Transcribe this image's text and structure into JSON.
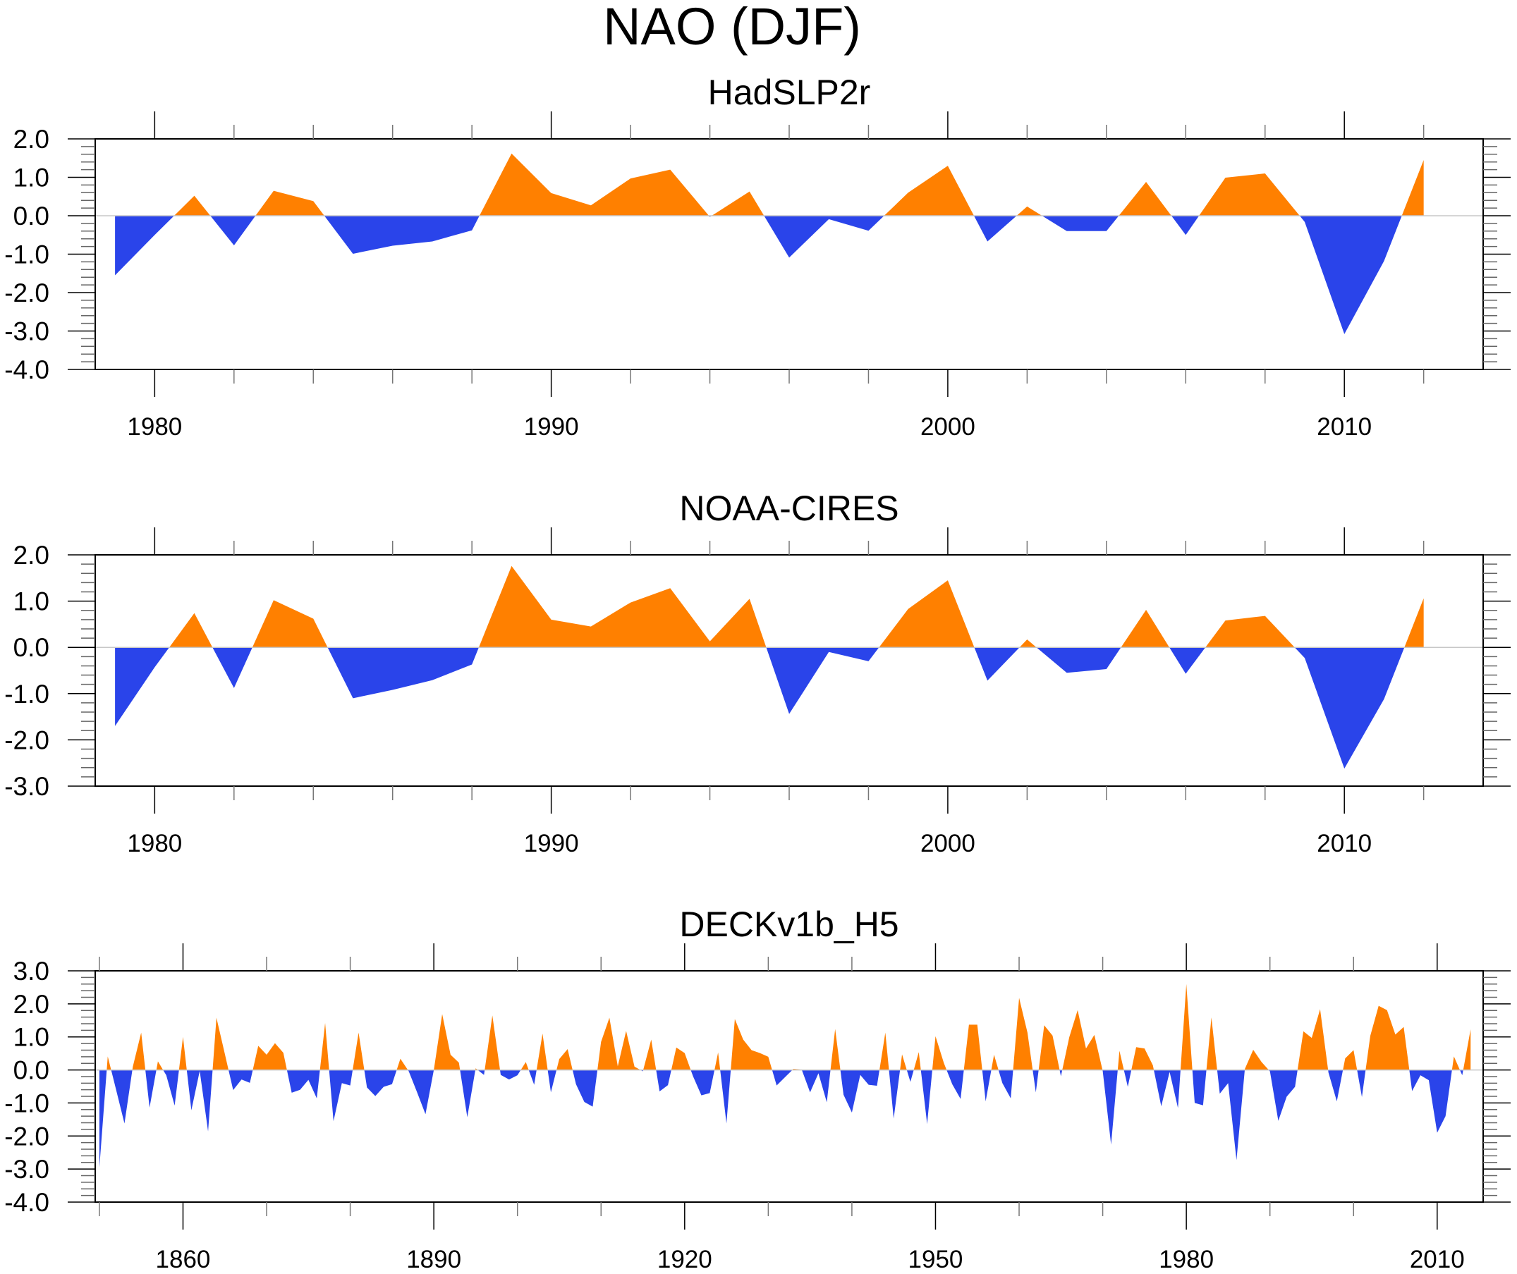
{
  "figure": {
    "title": "NAO (DJF)",
    "colors": {
      "positive": "#FF8000",
      "negative": "#2A44EA",
      "zero_line": "#C8C8C8",
      "frame": "#000000"
    }
  },
  "chart_data": [
    {
      "type": "area",
      "title": "HadSLP2r",
      "xlabel": "",
      "ylabel": "",
      "xlim": [
        1978.5,
        2013.5
      ],
      "ylim": [
        -4.0,
        2.0
      ],
      "x_major_ticks": [
        1980,
        1990,
        2000,
        2010
      ],
      "x_tick_labels": [
        "1980",
        "1990",
        "2000",
        "2010"
      ],
      "x_minor_step": 2,
      "y_ticks": [
        2.0,
        1.0,
        0.0,
        -1.0,
        -2.0,
        -3.0,
        -4.0
      ],
      "y_tick_labels": [
        "2.0",
        "1.0",
        "0.0",
        "-1.0",
        "-2.0",
        "-3.0",
        "-4.0"
      ],
      "y_minor_step": 0.2,
      "grid": false,
      "x_start": 1979,
      "values": [
        -1.55,
        -0.5,
        0.52,
        -0.77,
        0.65,
        0.38,
        -0.99,
        -0.78,
        -0.67,
        -0.38,
        1.62,
        0.59,
        0.27,
        0.97,
        1.2,
        -0.03,
        0.63,
        -1.09,
        -0.09,
        -0.39,
        0.6,
        1.3,
        -0.67,
        0.24,
        -0.4,
        -0.4,
        0.88,
        -0.5,
        0.99,
        1.1,
        -0.16,
        -3.08,
        -1.18,
        1.45
      ]
    },
    {
      "type": "area",
      "title": "NOAA-CIRES",
      "xlabel": "",
      "ylabel": "",
      "xlim": [
        1978.5,
        2013.5
      ],
      "ylim": [
        -3.0,
        2.0
      ],
      "x_major_ticks": [
        1980,
        1990,
        2000,
        2010
      ],
      "x_tick_labels": [
        "1980",
        "1990",
        "2000",
        "2010"
      ],
      "x_minor_step": 2,
      "y_ticks": [
        2.0,
        1.0,
        0.0,
        -1.0,
        -2.0,
        -3.0
      ],
      "y_tick_labels": [
        "2.0",
        "1.0",
        "0.0",
        "-1.0",
        "-2.0",
        "-3.0"
      ],
      "y_minor_step": 0.2,
      "grid": false,
      "x_start": 1979,
      "values": [
        -1.7,
        -0.43,
        0.74,
        -0.88,
        1.02,
        0.62,
        -1.1,
        -0.92,
        -0.71,
        -0.37,
        1.76,
        0.6,
        0.45,
        0.97,
        1.28,
        0.13,
        1.05,
        -1.44,
        -0.1,
        -0.3,
        0.83,
        1.45,
        -0.72,
        0.17,
        -0.55,
        -0.47,
        0.81,
        -0.57,
        0.58,
        0.68,
        -0.23,
        -2.62,
        -1.12,
        1.06
      ]
    },
    {
      "type": "area",
      "title": "DECKv1b_H5",
      "xlabel": "",
      "ylabel": "",
      "xlim": [
        1849.5,
        2015.5
      ],
      "ylim": [
        -4.0,
        3.0
      ],
      "x_major_ticks": [
        1860,
        1890,
        1920,
        1950,
        1980,
        2010
      ],
      "x_tick_labels": [
        "1860",
        "1890",
        "1920",
        "1950",
        "1980",
        "2010"
      ],
      "x_minor_step": 10,
      "y_ticks": [
        3.0,
        2.0,
        1.0,
        0.0,
        -1.0,
        -2.0,
        -3.0,
        -4.0
      ],
      "y_tick_labels": [
        "3.0",
        "2.0",
        "1.0",
        "0.0",
        "-1.0",
        "-2.0",
        "-3.0",
        "-4.0"
      ],
      "y_minor_step": 0.2,
      "grid": false,
      "x_start": 1850,
      "values": [
        -2.95,
        0.41,
        -0.6,
        -1.62,
        0.1,
        1.13,
        -1.14,
        0.26,
        -0.16,
        -1.08,
        1.0,
        -1.22,
        -0.03,
        -1.86,
        1.58,
        0.49,
        -0.61,
        -0.29,
        -0.39,
        0.73,
        0.46,
        0.81,
        0.52,
        -0.69,
        -0.6,
        -0.3,
        -0.86,
        1.42,
        -1.55,
        -0.4,
        -0.47,
        1.13,
        -0.53,
        -0.79,
        -0.51,
        -0.43,
        0.34,
        -0.04,
        -0.68,
        -1.34,
        0.0,
        1.69,
        0.46,
        0.22,
        -1.43,
        0.05,
        -0.15,
        1.65,
        -0.15,
        -0.29,
        -0.16,
        0.24,
        -0.45,
        1.1,
        -0.68,
        0.33,
        0.63,
        -0.43,
        -0.97,
        -1.11,
        0.85,
        1.58,
        0.11,
        1.18,
        0.1,
        -0.04,
        0.92,
        -0.65,
        -0.46,
        0.68,
        0.51,
        -0.19,
        -0.77,
        -0.7,
        0.53,
        -1.62,
        1.54,
        0.92,
        0.6,
        0.51,
        0.4,
        -0.47,
        -0.22,
        0.03,
        0.01,
        -0.68,
        -0.1,
        -0.98,
        1.24,
        -0.75,
        -1.29,
        -0.15,
        -0.45,
        -0.48,
        1.13,
        -1.47,
        0.47,
        -0.36,
        0.54,
        -1.64,
        1.02,
        0.21,
        -0.43,
        -0.88,
        1.37,
        1.37,
        -0.95,
        0.46,
        -0.4,
        -0.86,
        2.18,
        1.13,
        -0.68,
        1.35,
        1.04,
        -0.19,
        0.99,
        1.81,
        0.65,
        1.06,
        -0.03,
        -2.26,
        0.58,
        -0.51,
        0.69,
        0.65,
        0.14,
        -1.1,
        -0.06,
        -1.15,
        2.6,
        -1.0,
        -1.07,
        1.59,
        -0.72,
        -0.4,
        -2.73,
        0.03,
        0.61,
        0.24,
        -0.04,
        -1.54,
        -0.81,
        -0.51,
        1.17,
        0.97,
        1.84,
        -0.08,
        -0.95,
        0.35,
        0.6,
        -0.82,
        1.03,
        1.94,
        1.81,
        1.07,
        1.3,
        -0.64,
        -0.16,
        -0.31,
        -1.9,
        -1.4,
        0.41,
        -0.16,
        1.23
      ]
    }
  ]
}
